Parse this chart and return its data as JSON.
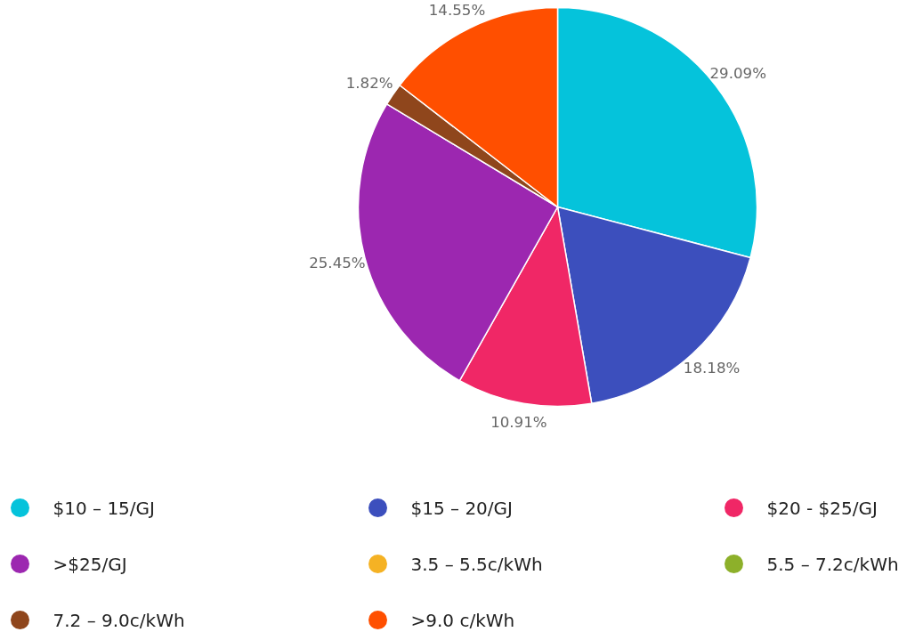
{
  "chart_data": {
    "type": "pie",
    "categories": [
      "$10 – 15/GJ",
      "$15 – 20/GJ",
      "$20 - $25/GJ",
      ">$25/GJ",
      "3.5 – 5.5c/kWh",
      "5.5 – 7.2c/kWh",
      "7.2 – 9.0c/kWh",
      ">9.0 c/kWh"
    ],
    "values": [
      29.09,
      18.18,
      10.91,
      25.45,
      0,
      0,
      1.82,
      14.55
    ],
    "value_labels": [
      "29.09%",
      "18.18%",
      "10.91%",
      "25.45%",
      null,
      null,
      "1.82%",
      "14.55%"
    ],
    "colors": [
      "#05c3db",
      "#3c4fbd",
      "#f02766",
      "#9c27b0",
      "#f5b224",
      "#8db02a",
      "#8f461c",
      "#ff4f00"
    ],
    "legend": "bottom"
  }
}
